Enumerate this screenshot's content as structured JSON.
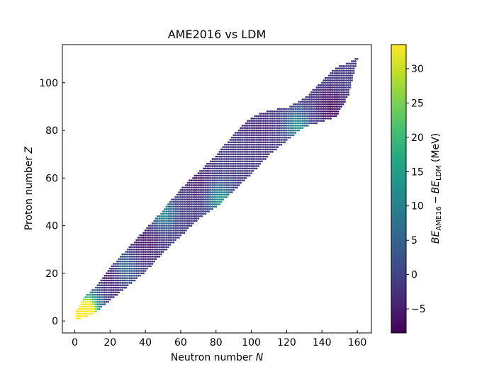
{
  "chart_data": {
    "type": "scatter",
    "title": "AME2016 vs LDM",
    "xlabel": "Neutron number",
    "xlabel_symbol": "N",
    "ylabel": "Proton number",
    "ylabel_symbol": "Z",
    "xlim": [
      -7,
      168
    ],
    "ylim": [
      -5,
      116
    ],
    "xticks": [
      0,
      20,
      40,
      60,
      80,
      100,
      120,
      140,
      160
    ],
    "yticks": [
      0,
      20,
      40,
      60,
      80,
      100
    ],
    "grid": false,
    "colormap": "viridis",
    "colorbar": {
      "label_prefix": "BE",
      "label_sub1": "AME16",
      "label_minus": "−",
      "label_sub2": "LDM",
      "label_unit": "(MeV)",
      "range": [
        -8.5,
        33.5
      ],
      "ticks": [
        -5,
        0,
        5,
        10,
        15,
        20,
        25,
        30
      ],
      "tick_labels": [
        "−5",
        "0",
        "5",
        "10",
        "15",
        "20",
        "25",
        "30"
      ]
    },
    "band": {
      "description_values": "Z range vs N (data units)",
      "N": [
        1,
        6,
        12,
        20,
        30,
        40,
        50,
        60,
        70,
        80,
        90,
        100,
        110,
        120,
        130,
        140,
        148,
        155,
        160
      ],
      "Zmin": [
        1,
        2,
        4,
        9,
        15,
        21,
        29,
        36,
        43,
        48,
        55,
        62,
        70,
        76,
        82,
        84,
        86,
        95,
        110
      ],
      "Zmax": [
        4,
        10,
        14,
        22,
        30,
        38,
        46,
        55,
        62,
        69,
        78,
        85,
        88,
        89,
        93,
        100,
        106,
        108,
        110
      ]
    },
    "hotspots": [
      {
        "N": 3,
        "Z": 2,
        "value": 33
      },
      {
        "N": 6,
        "Z": 3,
        "value": 24
      },
      {
        "N": 9,
        "Z": 6,
        "value": 15
      },
      {
        "N": 82,
        "Z": 51,
        "value": 14
      },
      {
        "N": 126,
        "Z": 82,
        "value": 13
      },
      {
        "N": 50,
        "Z": 45,
        "value": 11
      },
      {
        "N": 28,
        "Z": 22,
        "value": 8
      }
    ],
    "coldspots": [
      {
        "N": 22,
        "Z": 19,
        "value": -6
      },
      {
        "N": 40,
        "Z": 33,
        "value": -6
      },
      {
        "N": 70,
        "Z": 58,
        "value": -5
      },
      {
        "N": 145,
        "Z": 90,
        "value": -8
      },
      {
        "N": 104,
        "Z": 79,
        "value": -4
      }
    ]
  }
}
